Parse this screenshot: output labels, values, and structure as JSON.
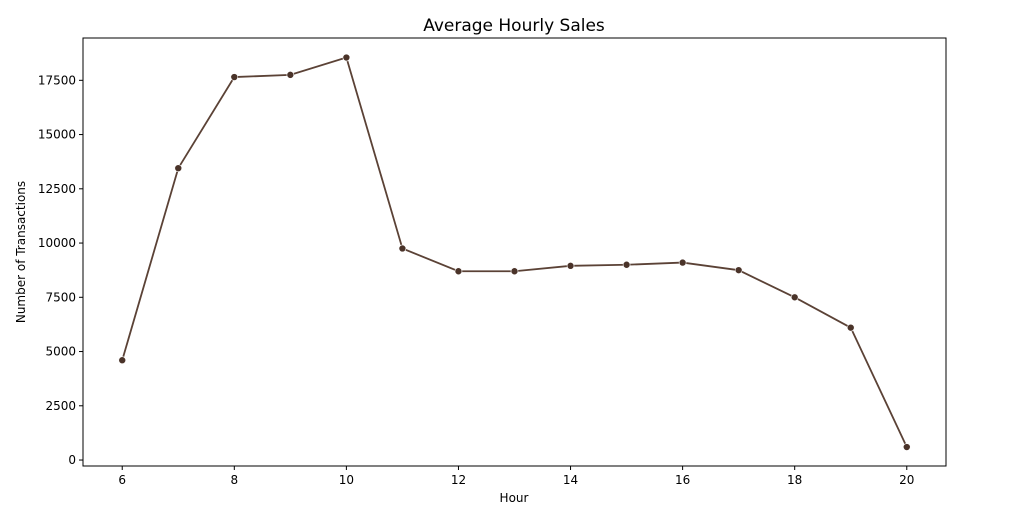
{
  "chart_data": {
    "type": "line",
    "title": "Average Hourly Sales",
    "x_label": "Hour",
    "y_label": "Number of Transactions",
    "x": [
      6,
      7,
      8,
      9,
      10,
      11,
      12,
      13,
      14,
      15,
      16,
      17,
      18,
      19,
      20
    ],
    "series": [
      {
        "color": "#5b4236",
        "values": [
          4600,
          13450,
          17650,
          17750,
          18550,
          9750,
          8700,
          8700,
          8950,
          9000,
          9100,
          8750,
          7500,
          6100,
          600
        ]
      }
    ],
    "xlim": [
      5.3,
      20.7
    ],
    "xticks": [
      6,
      8,
      10,
      12,
      14,
      16,
      18,
      20
    ],
    "ylim": [
      -275,
      19450
    ],
    "yticks": [
      0,
      2500,
      5000,
      7500,
      10000,
      12500,
      15000,
      17500
    ],
    "grid": false,
    "markers": true
  }
}
